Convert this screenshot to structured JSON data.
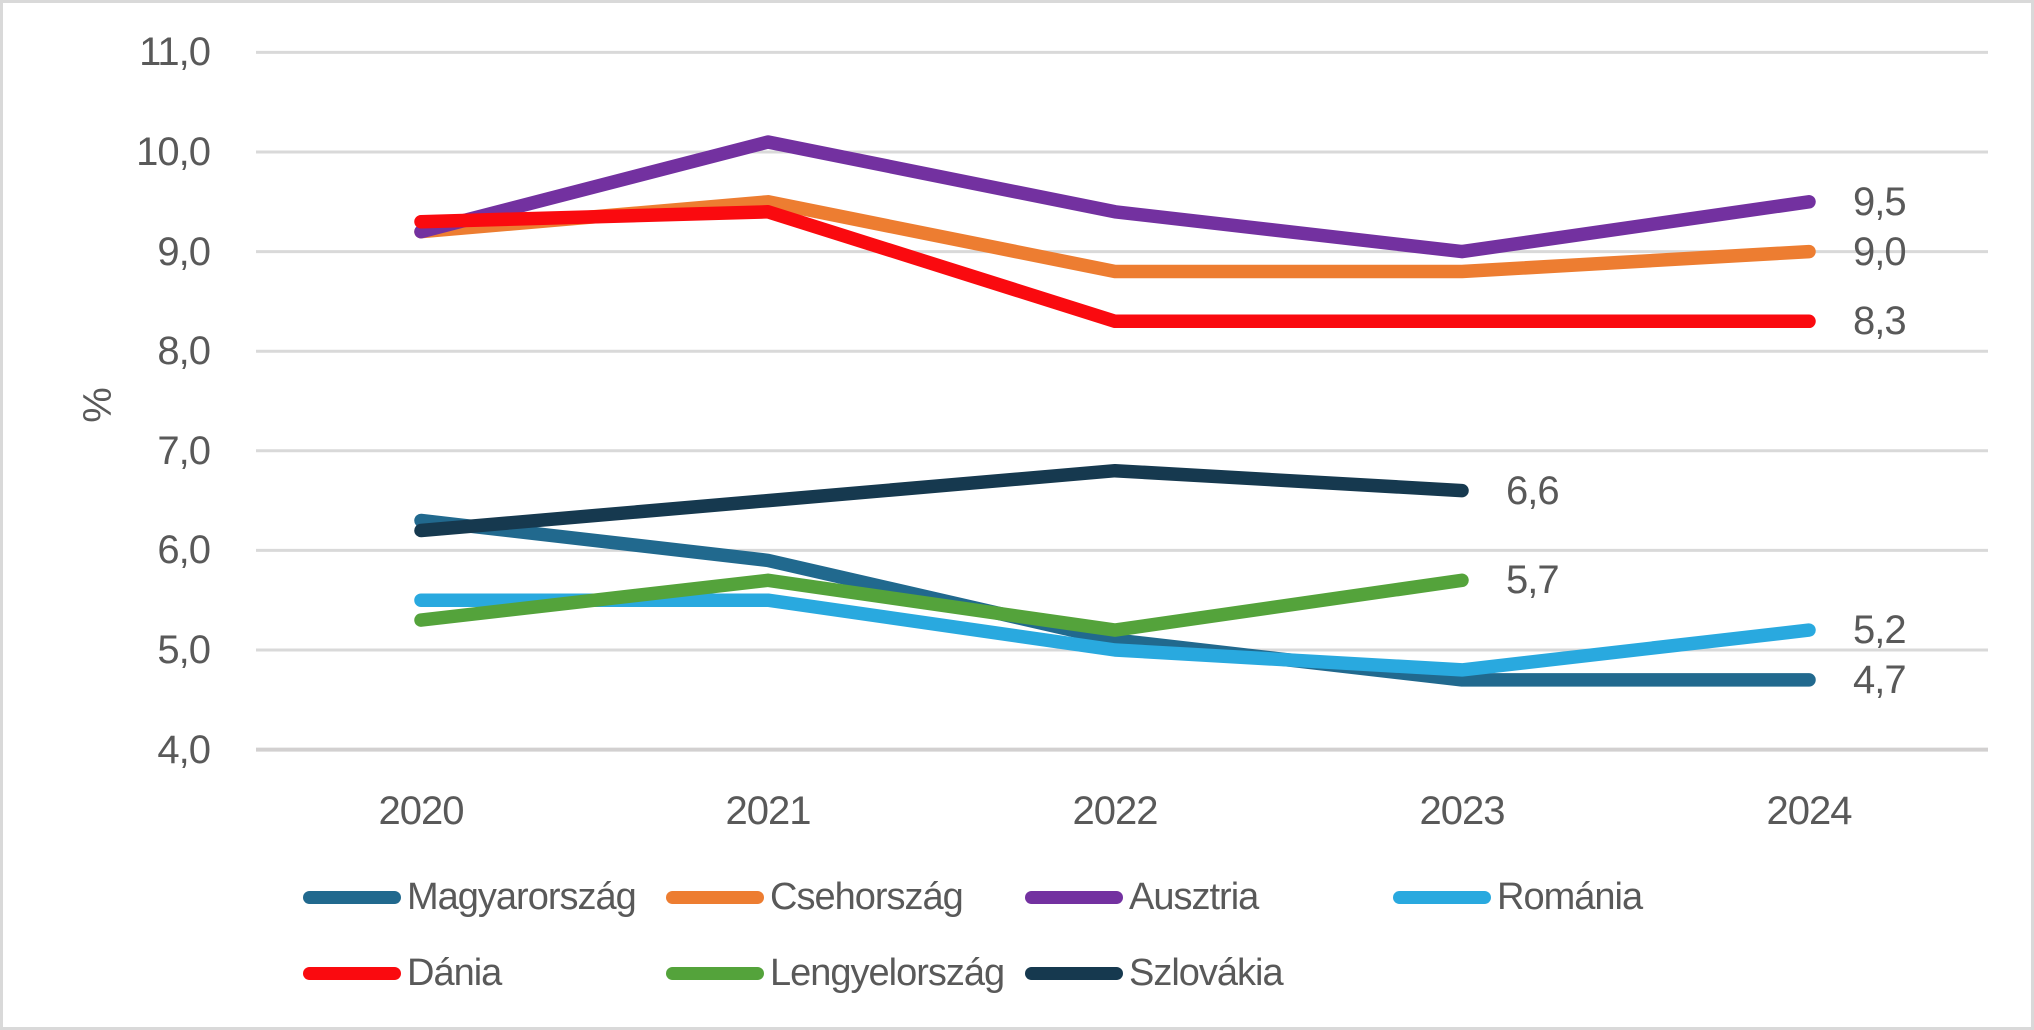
{
  "y_axis": {
    "title": "%",
    "ticks": [
      "11,0",
      "10,0",
      "9,0",
      "8,0",
      "7,0",
      "6,0",
      "5,0",
      "4,0"
    ],
    "tick_values": [
      11,
      10,
      9,
      8,
      7,
      6,
      5,
      4
    ]
  },
  "x_axis": {
    "ticks": [
      "2020",
      "2021",
      "2022",
      "2023",
      "2024"
    ]
  },
  "chart_data": {
    "type": "line",
    "title": "",
    "xlabel": "",
    "ylabel": "%",
    "x": [
      2020,
      2021,
      2022,
      2023,
      2024
    ],
    "ylim": [
      4.0,
      11.0
    ],
    "grid": true,
    "legend_position": "bottom",
    "series": [
      {
        "name": "Magyarország",
        "color": "#21698E",
        "values": [
          6.3,
          5.9,
          5.1,
          4.7,
          4.7
        ],
        "end_label": "4,7"
      },
      {
        "name": "Csehország",
        "color": "#ED7D31",
        "values": [
          9.2,
          9.5,
          8.8,
          8.8,
          9.0
        ],
        "end_label": "9,0"
      },
      {
        "name": "Ausztria",
        "color": "#7331A0",
        "values": [
          9.2,
          10.1,
          9.4,
          9.0,
          9.5
        ],
        "end_label": "9,5"
      },
      {
        "name": "Románia",
        "color": "#29A9DF",
        "values": [
          5.5,
          5.5,
          5.0,
          4.8,
          5.2
        ],
        "end_label": "5,2"
      },
      {
        "name": "Dánia",
        "color": "#FA0A0F",
        "values": [
          9.3,
          9.4,
          8.3,
          8.3,
          8.3
        ],
        "end_label": "8,3"
      },
      {
        "name": "Lengyelország",
        "color": "#54A33B",
        "values": [
          5.3,
          5.7,
          5.2,
          5.7,
          null
        ],
        "end_label": "5,7"
      },
      {
        "name": "Szlovákia",
        "color": "#16394F",
        "values": [
          6.2,
          6.5,
          6.8,
          6.6,
          null
        ],
        "end_label": "6,6"
      }
    ],
    "legend_rows": [
      [
        "Magyarország",
        "Csehország",
        "Ausztria",
        "Románia"
      ],
      [
        "Dánia",
        "Lengyelország",
        "Szlovákia"
      ]
    ]
  },
  "colors": {
    "text": "#595959",
    "gridline": "#D9D9D9",
    "axis_line": "#D2D0D0",
    "background": "#FFFFFF",
    "border": "#D9D9D9"
  }
}
